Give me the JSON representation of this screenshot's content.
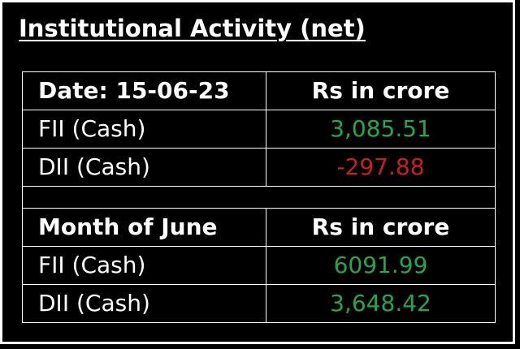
{
  "title": "Institutional Activity (net)",
  "daily": {
    "date_label": "Date: 15-06-23",
    "unit_label": "Rs in crore",
    "rows": [
      {
        "label": "FII (Cash)",
        "value": "3,085.51"
      },
      {
        "label": "DII (Cash)",
        "value": "-297.88"
      }
    ]
  },
  "monthly": {
    "period_label": "Month of June",
    "unit_label": "Rs in crore",
    "rows": [
      {
        "label": "FII (Cash)",
        "value": "6091.99"
      },
      {
        "label": "DII (Cash)",
        "value": "3,648.42"
      }
    ]
  },
  "colors": {
    "positive": "#22a84a",
    "negative": "#c71f1f",
    "background": "#000000",
    "text": "#ffffff"
  }
}
